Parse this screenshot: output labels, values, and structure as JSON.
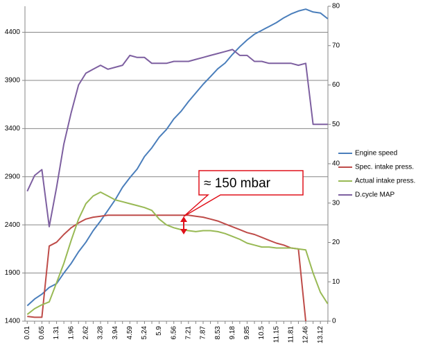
{
  "chart_data": {
    "type": "line",
    "categories": [
      "0.01",
      null,
      "0.65",
      null,
      "1.31",
      null,
      "1.96",
      null,
      "2.62",
      null,
      "3.28",
      null,
      "3.94",
      null,
      "4.59",
      null,
      "5.24",
      null,
      "5.9",
      null,
      "6.56",
      null,
      "7.21",
      null,
      "7.87",
      null,
      "8.53",
      null,
      "9.18",
      null,
      "9.85",
      null,
      "10.5",
      null,
      "11.15",
      null,
      "11.81",
      null,
      "12.46",
      null,
      "13.12",
      null
    ],
    "series": [
      {
        "name": "Engine speed",
        "color": "#4a7ebb",
        "values": [
          1560,
          1630,
          1680,
          1750,
          1790,
          1900,
          2000,
          2120,
          2220,
          2340,
          2440,
          2550,
          2660,
          2790,
          2890,
          2980,
          3110,
          3200,
          3310,
          3390,
          3500,
          3580,
          3680,
          3770,
          3860,
          3940,
          4020,
          4080,
          4170,
          4250,
          4320,
          4380,
          4420,
          4460,
          4500,
          4550,
          4590,
          4620,
          4640,
          4610,
          4600,
          4540
        ]
      },
      {
        "name": "Spec. intake press.",
        "color": "#be4b48",
        "values": [
          1450,
          1440,
          1440,
          2180,
          2220,
          2300,
          2370,
          2420,
          2460,
          2480,
          2490,
          2500,
          2500,
          2500,
          2500,
          2500,
          2500,
          2500,
          2500,
          2500,
          2500,
          2500,
          2500,
          2490,
          2480,
          2460,
          2440,
          2410,
          2380,
          2350,
          2320,
          2300,
          2270,
          2240,
          2210,
          2190,
          2160,
          2150,
          1400,
          null,
          null,
          null
        ]
      },
      {
        "name": "Actual intake press.",
        "color": "#98b954",
        "values": [
          1470,
          1530,
          1570,
          1600,
          1800,
          2000,
          2240,
          2460,
          2620,
          2700,
          2740,
          2700,
          2660,
          2640,
          2620,
          2600,
          2580,
          2550,
          2460,
          2400,
          2370,
          2350,
          2340,
          2330,
          2340,
          2340,
          2330,
          2310,
          2280,
          2250,
          2210,
          2190,
          2170,
          2170,
          2160,
          2160,
          2160,
          2150,
          2140,
          1900,
          1700,
          1580
        ]
      },
      {
        "name": "D.cycle MAP",
        "color": "#7d5fa0",
        "axis": "y2",
        "values": [
          33,
          37,
          38.5,
          24,
          34,
          45,
          53,
          60,
          63,
          64,
          65,
          64,
          64.5,
          65,
          67.5,
          67,
          67,
          65.5,
          65.5,
          65.5,
          66,
          66,
          66,
          66.5,
          67,
          67.5,
          68,
          68.5,
          69,
          67.5,
          67.5,
          66,
          66,
          65.5,
          65.5,
          65.5,
          65.5,
          65,
          65.5,
          50,
          50,
          50
        ]
      }
    ],
    "ylim": [
      1400,
      4670
    ],
    "yticks": [
      1400,
      1900,
      2400,
      2900,
      3400,
      3900,
      4400
    ],
    "y2lim": [
      0,
      80
    ],
    "y2ticks": [
      0,
      10,
      20,
      30,
      40,
      50,
      60,
      70,
      80
    ],
    "grid": true,
    "legend": "right",
    "annotation": "≈ 150 mbar"
  }
}
